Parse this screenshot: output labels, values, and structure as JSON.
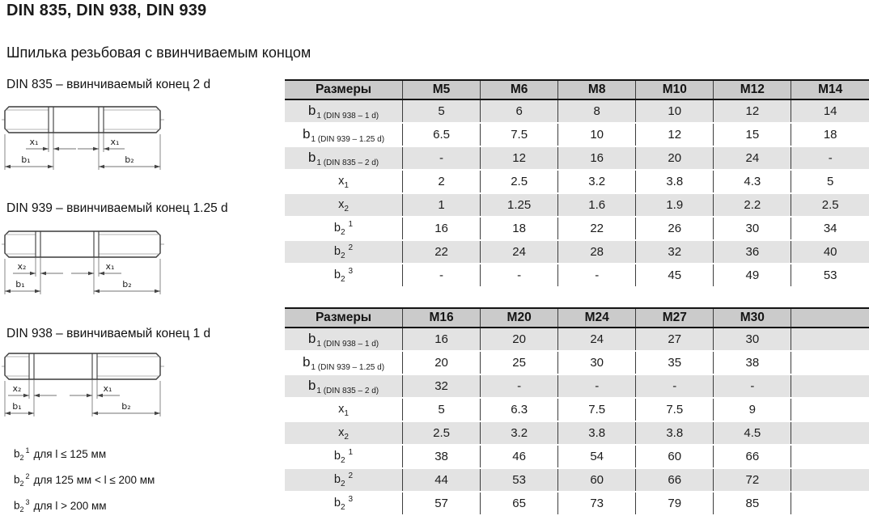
{
  "page": {
    "title": "DIN 835, DIN 938, DIN 939",
    "subtitle": "Шпилька резьбовая с ввинчиваемым концом"
  },
  "colors": {
    "header_bg": "#cbcbcb",
    "row_alt_bg": "#e3e3e3",
    "border_dark": "#141414",
    "grid_line": "#3c3c3c"
  },
  "diagrams": [
    {
      "label": "DIN 835 – ввинчиваемый конец 2 d",
      "dims": {
        "x_left": "x₁",
        "x_right": "x₁",
        "b_left": "b₁",
        "b_right": "b₂"
      }
    },
    {
      "label": "DIN 939 – ввинчиваемый конец 1.25 d",
      "dims": {
        "x_left": "x₂",
        "x_right": "x₁",
        "b_left": "b₁",
        "b_right": "b₂"
      }
    },
    {
      "label": "DIN 938 – ввинчиваемый конец 1 d",
      "dims": {
        "x_left": "x₂",
        "x_right": "x₁",
        "b_left": "b₁",
        "b_right": "b₂"
      }
    }
  ],
  "footnotes": [
    {
      "base": "b",
      "sub": "2",
      "sup": "1",
      "text": "для l ≤ 125 мм"
    },
    {
      "base": "b",
      "sub": "2",
      "sup": "2",
      "text": "для 125 мм < l ≤ 200 мм"
    },
    {
      "base": "b",
      "sub": "2",
      "sup": "3",
      "text": "для l > 200 мм"
    }
  ],
  "tables": [
    {
      "name": "sizes-m5-m14",
      "header": [
        "Размеры",
        "M5",
        "M6",
        "M8",
        "M10",
        "M12",
        "M14"
      ],
      "rows": [
        {
          "label": {
            "base": "b",
            "sub": "1 (DIN 938 – 1 d)"
          },
          "values": [
            "5",
            "6",
            "8",
            "10",
            "12",
            "14"
          ]
        },
        {
          "label": {
            "base": "b",
            "sub": "1 (DIN 939 – 1.25 d)"
          },
          "values": [
            "6.5",
            "7.5",
            "10",
            "12",
            "15",
            "18"
          ]
        },
        {
          "label": {
            "base": "b",
            "sub": "1 (DIN 835 – 2 d)"
          },
          "values": [
            "-",
            "12",
            "16",
            "20",
            "24",
            "-"
          ]
        },
        {
          "label": {
            "base": "x",
            "sub": "1"
          },
          "values": [
            "2",
            "2.5",
            "3.2",
            "3.8",
            "4.3",
            "5"
          ]
        },
        {
          "label": {
            "base": "x",
            "sub": "2"
          },
          "values": [
            "1",
            "1.25",
            "1.6",
            "1.9",
            "2.2",
            "2.5"
          ]
        },
        {
          "label": {
            "base": "b",
            "sub": "2",
            "sup": "1"
          },
          "values": [
            "16",
            "18",
            "22",
            "26",
            "30",
            "34"
          ]
        },
        {
          "label": {
            "base": "b",
            "sub": "2",
            "sup": "2"
          },
          "values": [
            "22",
            "24",
            "28",
            "32",
            "36",
            "40"
          ]
        },
        {
          "label": {
            "base": "b",
            "sub": "2",
            "sup": "3"
          },
          "values": [
            "-",
            "-",
            "-",
            "45",
            "49",
            "53"
          ]
        }
      ]
    },
    {
      "name": "sizes-m16-m30",
      "header": [
        "Размеры",
        "M16",
        "M20",
        "M24",
        "M27",
        "M30",
        ""
      ],
      "rows": [
        {
          "label": {
            "base": "b",
            "sub": "1 (DIN 938 – 1 d)"
          },
          "values": [
            "16",
            "20",
            "24",
            "27",
            "30",
            ""
          ]
        },
        {
          "label": {
            "base": "b",
            "sub": "1 (DIN 939 – 1.25 d)"
          },
          "values": [
            "20",
            "25",
            "30",
            "35",
            "38",
            ""
          ]
        },
        {
          "label": {
            "base": "b",
            "sub": "1 (DIN 835 – 2 d)"
          },
          "values": [
            "32",
            "-",
            "-",
            "-",
            "-",
            ""
          ]
        },
        {
          "label": {
            "base": "x",
            "sub": "1"
          },
          "values": [
            "5",
            "6.3",
            "7.5",
            "7.5",
            "9",
            ""
          ]
        },
        {
          "label": {
            "base": "x",
            "sub": "2"
          },
          "values": [
            "2.5",
            "3.2",
            "3.8",
            "3.8",
            "4.5",
            ""
          ]
        },
        {
          "label": {
            "base": "b",
            "sub": "2",
            "sup": "1"
          },
          "values": [
            "38",
            "46",
            "54",
            "60",
            "66",
            ""
          ]
        },
        {
          "label": {
            "base": "b",
            "sub": "2",
            "sup": "2"
          },
          "values": [
            "44",
            "53",
            "60",
            "66",
            "72",
            ""
          ]
        },
        {
          "label": {
            "base": "b",
            "sub": "2",
            "sup": "3"
          },
          "values": [
            "57",
            "65",
            "73",
            "79",
            "85",
            ""
          ]
        }
      ]
    }
  ]
}
